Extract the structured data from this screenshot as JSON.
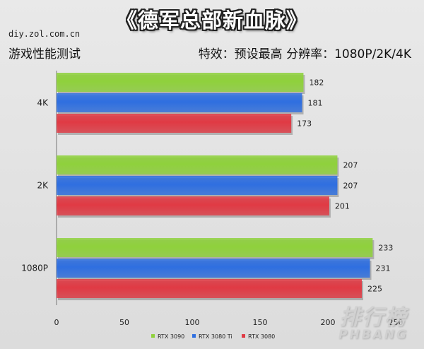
{
  "header": {
    "title": "《德军总部新血脉》",
    "site": "diy.zol.com.cn",
    "subtitle": "游戏性能测试",
    "settings": "特效：预设最高   分辨率：1080P/2K/4K"
  },
  "watermark": {
    "cn": "排行榜",
    "en": "PHBANG"
  },
  "chart_data": {
    "type": "bar",
    "orientation": "horizontal",
    "categories": [
      "4K",
      "2K",
      "1080P"
    ],
    "series": [
      {
        "name": "RTX 3090",
        "color": "#8fd13c",
        "values": [
          182,
          207,
          233
        ]
      },
      {
        "name": "RTX 3080 Ti",
        "color": "#2f6fe0",
        "values": [
          181,
          207,
          231
        ]
      },
      {
        "name": "RTX 3080",
        "color": "#e03a44",
        "values": [
          173,
          201,
          225
        ]
      }
    ],
    "xlim": [
      0,
      250
    ],
    "xticks": [
      0,
      50,
      100,
      150,
      200,
      250
    ],
    "grid": false,
    "legend_position": "bottom"
  }
}
